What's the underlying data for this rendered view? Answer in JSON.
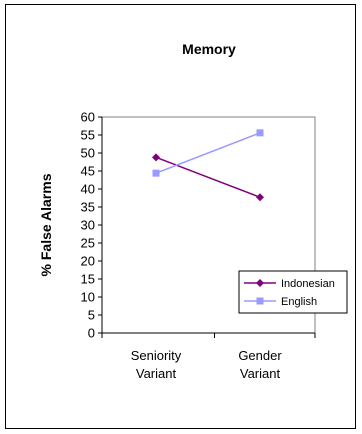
{
  "chart_data": {
    "type": "line",
    "title": "Memory",
    "xlabel": "",
    "ylabel": "% False Alarms",
    "categories": [
      [
        "Seniority",
        "Variant"
      ],
      [
        "Gender",
        "Variant"
      ]
    ],
    "ylim": [
      0,
      60
    ],
    "yticks": [
      0,
      5,
      10,
      15,
      20,
      25,
      30,
      35,
      40,
      45,
      50,
      55,
      60
    ],
    "grid": false,
    "legend_position": "bottom-right",
    "series": [
      {
        "name": "Indonesian",
        "values": [
          48.8,
          37.7
        ],
        "color": "#800080",
        "marker": "diamond"
      },
      {
        "name": "English",
        "values": [
          44.4,
          55.6
        ],
        "color": "#9999ff",
        "marker": "square"
      }
    ]
  }
}
